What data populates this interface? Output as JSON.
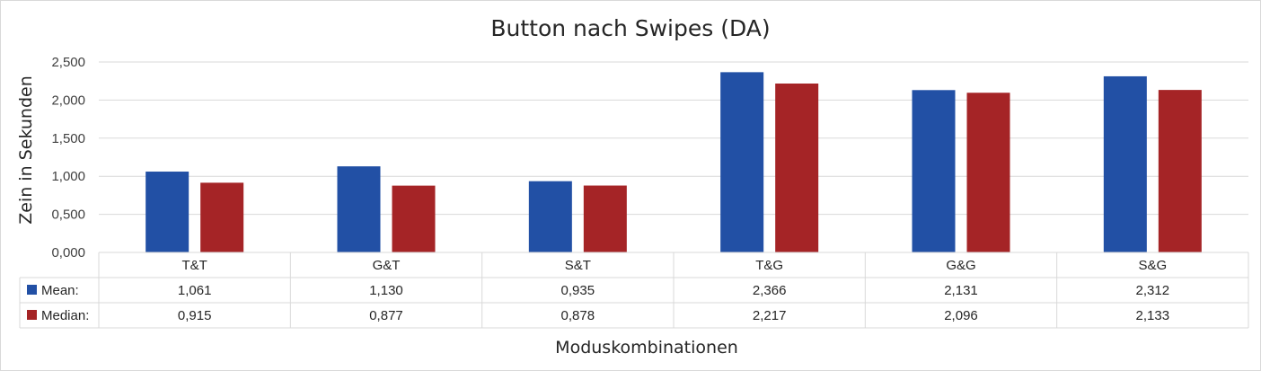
{
  "chart_data": {
    "type": "bar",
    "title": "Button nach Swipes (DA)",
    "xlabel": "Moduskombinationen",
    "ylabel": "Zein in Sekunden",
    "categories": [
      "T&T",
      "G&T",
      "S&T",
      "T&G",
      "G&G",
      "S&G"
    ],
    "ylim": [
      0,
      2.5
    ],
    "yticks": [
      "0,000",
      "0,500",
      "1,000",
      "1,500",
      "2,000",
      "2,500"
    ],
    "grid": true,
    "legend": "data-table",
    "series": [
      {
        "name": "Mean:",
        "color": "#2250a5",
        "values": [
          1.061,
          1.13,
          0.935,
          2.366,
          2.131,
          2.312
        ],
        "labels": [
          "1,061",
          "1,130",
          "0,935",
          "2,366",
          "2,131",
          "2,312"
        ]
      },
      {
        "name": "Median:",
        "color": "#a52426",
        "values": [
          0.915,
          0.877,
          0.878,
          2.217,
          2.096,
          2.133
        ],
        "labels": [
          "0,915",
          "0,877",
          "0,878",
          "2,217",
          "2,096",
          "2,133"
        ]
      }
    ]
  }
}
